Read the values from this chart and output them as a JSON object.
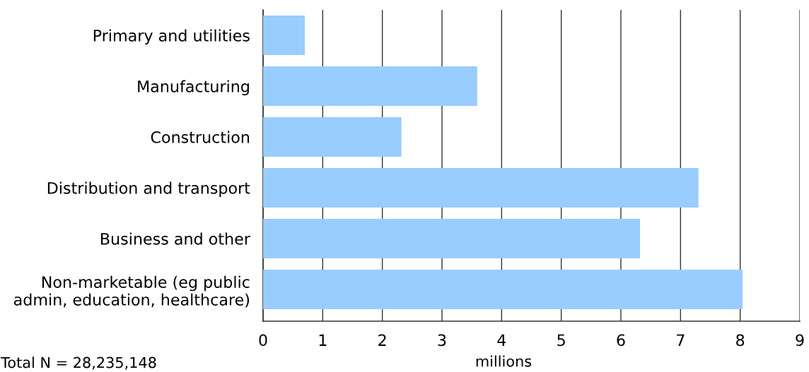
{
  "chart_data": {
    "type": "bar",
    "orientation": "horizontal",
    "categories": [
      "Primary and utilities",
      "Manufacturing",
      "Construction",
      "Distribution and transport",
      "Business and other",
      "Non-marketable (eg public\nadmin, education, healthcare)"
    ],
    "values": [
      0.7,
      3.59,
      2.32,
      7.3,
      6.32,
      8.04
    ],
    "color": "#99ccff",
    "xlim": [
      0,
      9
    ],
    "xticks": [
      0,
      1,
      2,
      3,
      4,
      5,
      6,
      7,
      8,
      9
    ],
    "xlabel": "millions",
    "grid": "x",
    "annotations": [
      "Total N = 28,235,148"
    ]
  }
}
